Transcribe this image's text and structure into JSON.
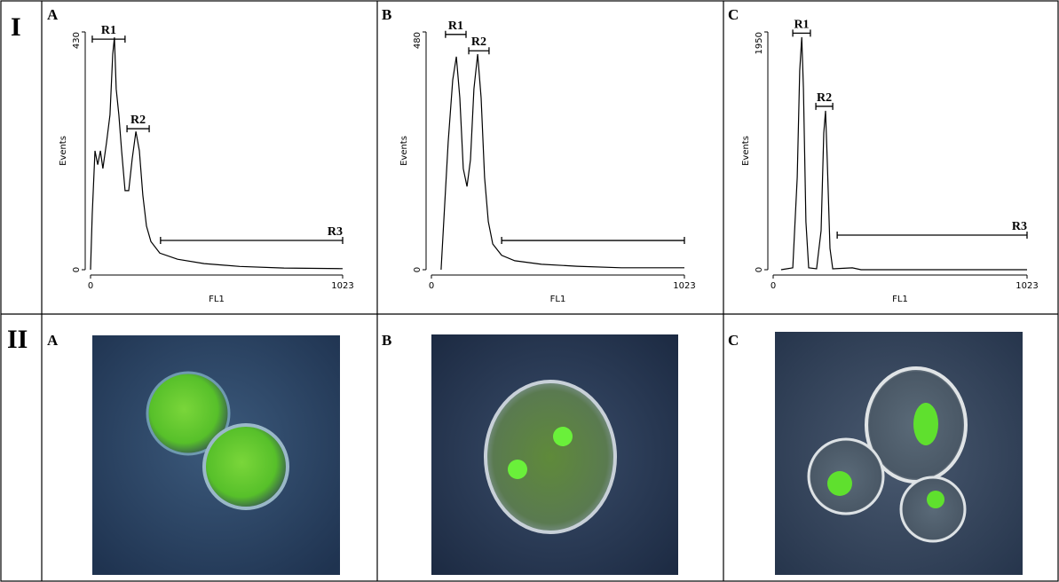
{
  "figure": {
    "row_labels": [
      "I",
      "II"
    ],
    "image_panel_labels": [
      "A",
      "B",
      "C"
    ]
  },
  "chart_data": [
    {
      "type": "line",
      "panel_label": "A",
      "x_label": "FL1",
      "y_label": "Events",
      "xlim": [
        0,
        1023
      ],
      "ylim": [
        0,
        430
      ],
      "xticks": [
        0,
        1023
      ],
      "yticks": [
        0,
        430
      ],
      "x": [
        0,
        7,
        18,
        29,
        40,
        50,
        65,
        79,
        90,
        97,
        104,
        115,
        126,
        140,
        155,
        169,
        184,
        198,
        212,
        227,
        245,
        281,
        353,
        461,
        605,
        785,
        1023
      ],
      "series": [
        {
          "color": "#000000",
          "values": [
            0,
            100,
            215,
            190,
            215,
            183,
            230,
            280,
            390,
            420,
            327,
            280,
            215,
            143,
            143,
            200,
            250,
            215,
            135,
            79,
            51,
            30,
            19,
            11,
            6,
            3,
            2
          ]
        }
      ],
      "gates": [
        {
          "label": "R1",
          "start": 7,
          "end": 140,
          "level": 417
        },
        {
          "label": "R2",
          "start": 148,
          "end": 238,
          "level": 255
        },
        {
          "label": "R3",
          "start": 284,
          "end": 1023,
          "level": 53
        }
      ]
    },
    {
      "type": "line",
      "panel_label": "B",
      "x_label": "FL1",
      "y_label": "Events",
      "xlim": [
        0,
        1023
      ],
      "ylim": [
        0,
        480
      ],
      "xticks": [
        0,
        1023
      ],
      "yticks": [
        0,
        480
      ],
      "x": [
        39,
        50,
        68,
        86,
        101,
        115,
        129,
        144,
        158,
        172,
        187,
        201,
        215,
        230,
        248,
        284,
        337,
        445,
        589,
        768,
        1023
      ],
      "series": [
        {
          "color": "#000000",
          "values": [
            0,
            97,
            258,
            383,
            430,
            347,
            204,
            168,
            222,
            365,
            435,
            347,
            186,
            97,
            52,
            29,
            18,
            11,
            7,
            4,
            4
          ]
        }
      ],
      "gates": [
        {
          "label": "R1",
          "start": 57,
          "end": 140,
          "level": 475
        },
        {
          "label": "R2",
          "start": 151,
          "end": 233,
          "level": 442
        },
        {
          "start": 284,
          "end": 1023,
          "level": 59
        }
      ]
    },
    {
      "type": "line",
      "panel_label": "C",
      "x_label": "FL1",
      "y_label": "Events",
      "xlim": [
        0,
        1023
      ],
      "ylim": [
        0,
        1950
      ],
      "xticks": [
        0,
        1023
      ],
      "yticks": [
        0,
        1950
      ],
      "x": [
        32,
        79,
        97,
        107,
        115,
        122,
        132,
        143,
        175,
        193,
        204,
        211,
        218,
        229,
        240,
        319,
        354,
        1023
      ],
      "series": [
        {
          "color": "#000000",
          "values": [
            0,
            15,
            757,
            1631,
            1907,
            1485,
            393,
            15,
            7,
            320,
            1121,
            1303,
            903,
            175,
            7,
            15,
            0,
            0
          ]
        }
      ],
      "gates": [
        {
          "label": "R1",
          "start": 79,
          "end": 150,
          "level": 1940
        },
        {
          "label": "R2",
          "start": 172,
          "end": 240,
          "level": 1340
        },
        {
          "label": "R3",
          "start": 258,
          "end": 1023,
          "level": 284
        }
      ]
    }
  ]
}
